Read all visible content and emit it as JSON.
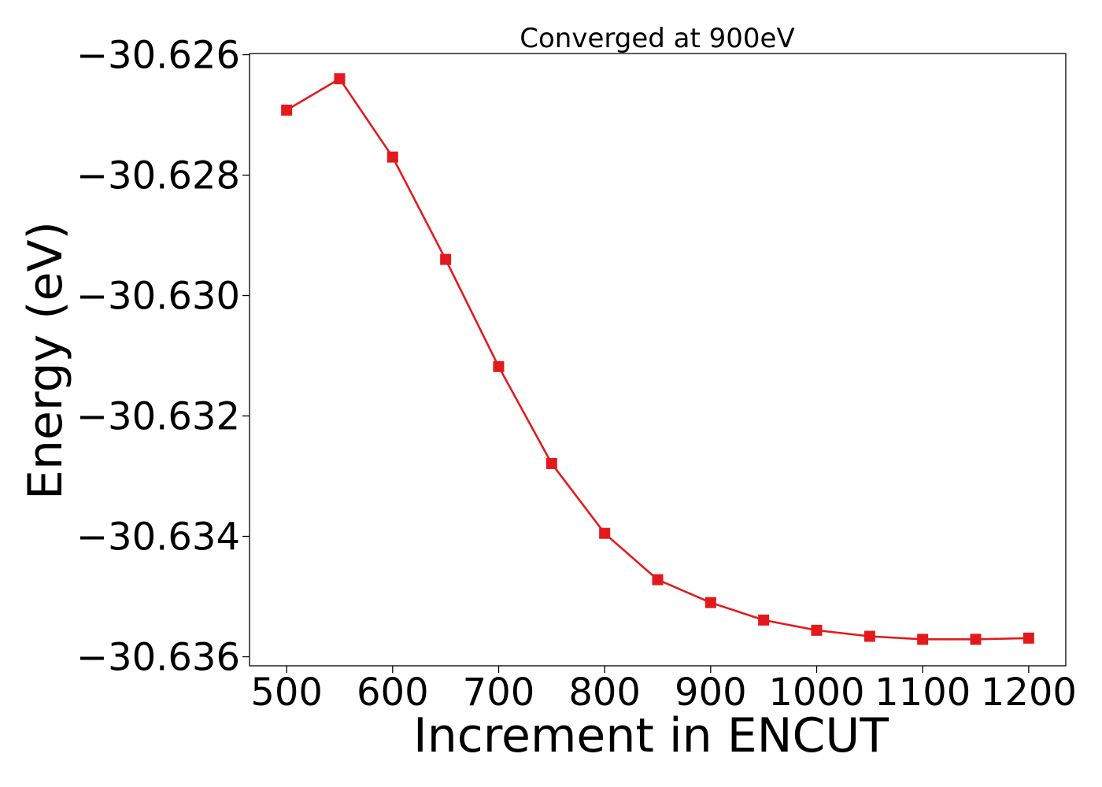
{
  "chart_data": {
    "type": "line",
    "title": "Converged at 900eV",
    "xlabel": "Increment in ENCUT",
    "ylabel": "Energy (eV)",
    "xlim": [
      465,
      1235
    ],
    "ylim": [
      -30.63615,
      -30.62598
    ],
    "xticks": [
      500,
      600,
      700,
      800,
      900,
      1000,
      1100,
      1200
    ],
    "xtick_labels": [
      "500",
      "600",
      "700",
      "800",
      "900",
      "1000",
      "1100",
      "1200"
    ],
    "yticks": [
      -30.626,
      -30.628,
      -30.63,
      -30.632,
      -30.634,
      -30.636
    ],
    "ytick_labels": [
      "−30.626",
      "−30.628",
      "−30.630",
      "−30.632",
      "−30.634",
      "−30.636"
    ],
    "grid": false,
    "series": [
      {
        "color": "#e31a1c",
        "marker": "square",
        "x": [
          500,
          550,
          600,
          650,
          700,
          750,
          800,
          850,
          900,
          950,
          1000,
          1050,
          1100,
          1150,
          1200
        ],
        "y": [
          -30.62692,
          -30.6264,
          -30.6277,
          -30.6294,
          -30.63118,
          -30.63279,
          -30.63395,
          -30.63472,
          -30.6351,
          -30.63539,
          -30.63556,
          -30.63566,
          -30.63571,
          -30.63571,
          -30.63569
        ]
      }
    ]
  }
}
